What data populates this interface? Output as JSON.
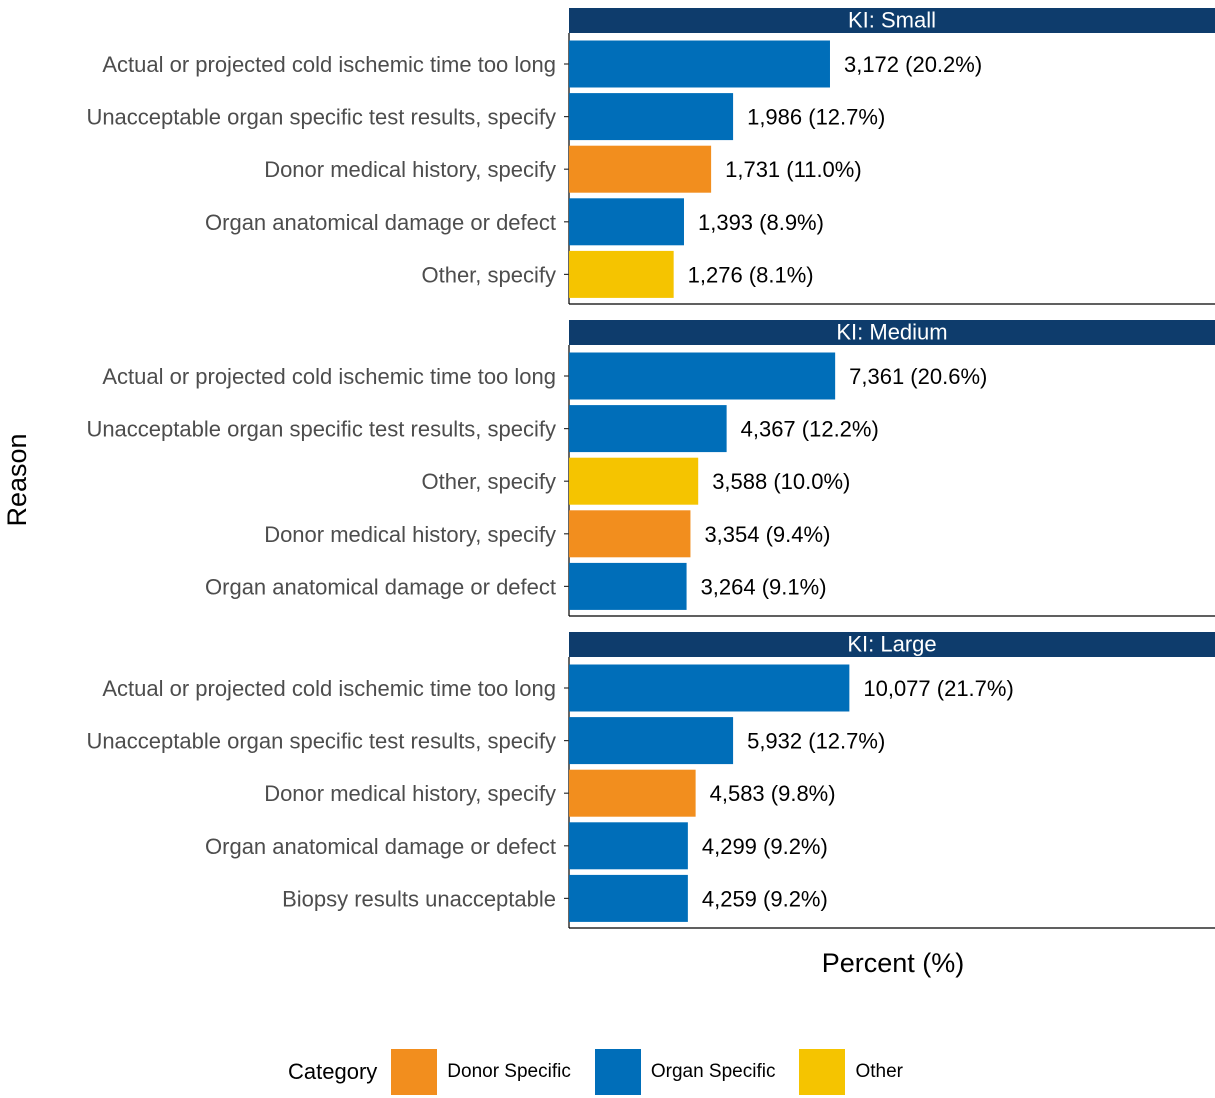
{
  "chart_data": {
    "type": "bar",
    "orientation": "horizontal",
    "ylabel": "Reason",
    "xlabel": "Percent (%)",
    "legend": {
      "title": "Category",
      "placement": "bottom",
      "items": [
        {
          "name": "Donor Specific",
          "color": "#f28e1e"
        },
        {
          "name": "Organ Specific",
          "color": "#006eb9"
        },
        {
          "name": "Other",
          "color": "#f5c400"
        }
      ]
    },
    "strip_color": "#0e3c6c",
    "xlim": [
      0,
      50
    ],
    "panels": [
      {
        "title": "KI: Small",
        "bars": [
          {
            "category": "Actual or projected cold ischemic time too long",
            "percent": 20.2,
            "group": "Organ Specific",
            "label": "3,172 (20.2%)"
          },
          {
            "category": "Unacceptable organ specific test results, specify",
            "percent": 12.7,
            "group": "Organ Specific",
            "label": "1,986 (12.7%)"
          },
          {
            "category": "Donor medical history, specify",
            "percent": 11.0,
            "group": "Donor Specific",
            "label": "1,731 (11.0%)"
          },
          {
            "category": "Organ anatomical damage or defect",
            "percent": 8.9,
            "group": "Organ Specific",
            "label": "1,393 (8.9%)"
          },
          {
            "category": "Other, specify",
            "percent": 8.1,
            "group": "Other",
            "label": "1,276 (8.1%)"
          }
        ]
      },
      {
        "title": "KI: Medium",
        "bars": [
          {
            "category": "Actual or projected cold ischemic time too long",
            "percent": 20.6,
            "group": "Organ Specific",
            "label": "7,361 (20.6%)"
          },
          {
            "category": "Unacceptable organ specific test results, specify",
            "percent": 12.2,
            "group": "Organ Specific",
            "label": "4,367 (12.2%)"
          },
          {
            "category": "Other, specify",
            "percent": 10.0,
            "group": "Other",
            "label": "3,588 (10.0%)"
          },
          {
            "category": "Donor medical history, specify",
            "percent": 9.4,
            "group": "Donor Specific",
            "label": "3,354 (9.4%)"
          },
          {
            "category": "Organ anatomical damage or defect",
            "percent": 9.1,
            "group": "Organ Specific",
            "label": "3,264 (9.1%)"
          }
        ]
      },
      {
        "title": "KI: Large",
        "bars": [
          {
            "category": "Actual or projected cold ischemic time too long",
            "percent": 21.7,
            "group": "Organ Specific",
            "label": "10,077 (21.7%)"
          },
          {
            "category": "Unacceptable organ specific test results, specify",
            "percent": 12.7,
            "group": "Organ Specific",
            "label": "5,932 (12.7%)"
          },
          {
            "category": "Donor medical history, specify",
            "percent": 9.8,
            "group": "Donor Specific",
            "label": "4,583 (9.8%)"
          },
          {
            "category": "Organ anatomical damage or defect",
            "percent": 9.2,
            "group": "Organ Specific",
            "label": "4,299 (9.2%)"
          },
          {
            "category": "Biopsy results unacceptable",
            "percent": 9.2,
            "group": "Organ Specific",
            "label": "4,259 (9.2%)"
          }
        ]
      }
    ]
  }
}
